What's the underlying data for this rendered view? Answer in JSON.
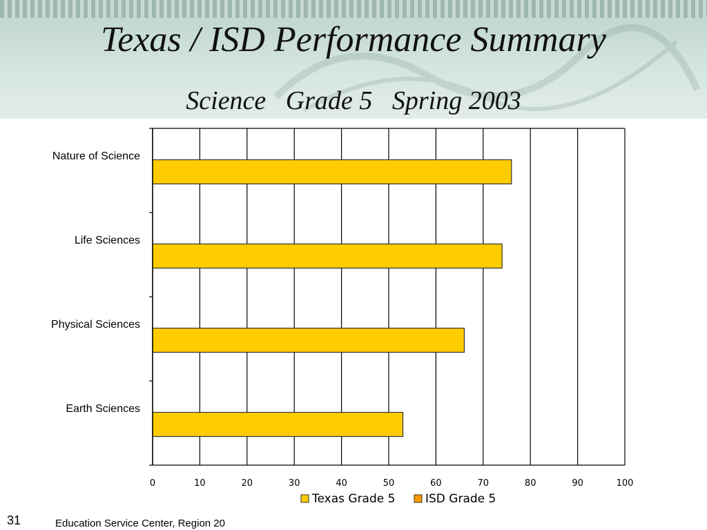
{
  "slide": {
    "title": "Texas / ISD Performance Summary",
    "subtitle": "Science   Grade 5   Spring 2003",
    "page_number": "31",
    "footer": "Education Service Center, Region 20"
  },
  "colors": {
    "bar_fill": "#ffcc00",
    "bar_stroke": "#333333",
    "legend_isd": "#ff9900",
    "header_bg": "#d4e4de"
  },
  "chart_data": {
    "type": "bar",
    "orientation": "horizontal",
    "categories": [
      "Nature of Science",
      "Life Sciences",
      "Physical Sciences",
      "Earth Sciences"
    ],
    "series": [
      {
        "name": "Texas Grade 5",
        "values": [
          76,
          74,
          66,
          53
        ]
      },
      {
        "name": "ISD Grade 5",
        "values": [
          null,
          null,
          null,
          null
        ]
      }
    ],
    "xlim": [
      0,
      100
    ],
    "xticks": [
      0,
      10,
      20,
      30,
      40,
      50,
      60,
      70,
      80,
      90,
      100
    ],
    "grid": "vertical",
    "legend_position": "bottom"
  }
}
